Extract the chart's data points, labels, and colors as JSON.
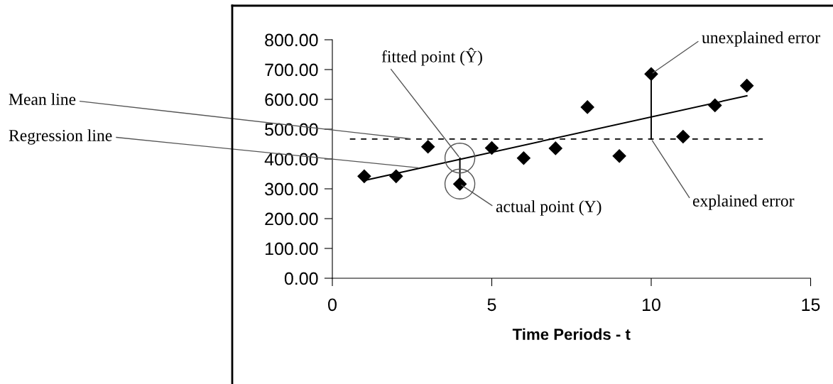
{
  "chart_data": {
    "type": "scatter",
    "xlabel": "Time Periods - t",
    "xlim": [
      0,
      15
    ],
    "xticks": [
      0,
      5,
      10,
      15
    ],
    "ylim": [
      0,
      800
    ],
    "yticks": [
      {
        "value": 0,
        "label": "0.00"
      },
      {
        "value": 100,
        "label": "100.00"
      },
      {
        "value": 200,
        "label": "200.00"
      },
      {
        "value": 300,
        "label": "300.00"
      },
      {
        "value": 400,
        "label": "400.00"
      },
      {
        "value": 500,
        "label": "500.00"
      },
      {
        "value": 600,
        "label": "600.00"
      },
      {
        "value": 700,
        "label": "700.00"
      },
      {
        "value": 800,
        "label": "800.00"
      }
    ],
    "grid": false,
    "marker": "diamond",
    "series": [
      {
        "color": "#000000",
        "x": [
          1,
          2,
          3,
          4,
          5,
          6,
          7,
          8,
          9,
          10,
          11,
          12,
          13
        ],
        "values": [
          342,
          342,
          441,
          316,
          437,
          403,
          436,
          574,
          410,
          685,
          475,
          580,
          646
        ]
      },
      {
        "type": "line",
        "line_style": "dashed",
        "marker": "none",
        "color": "#000000",
        "x": [
          0.55,
          13.5
        ],
        "values": [
          467,
          467
        ]
      },
      {
        "type": "line",
        "line_style": "solid",
        "marker": "none",
        "color": "#000000",
        "x": [
          1,
          13
        ],
        "values": [
          328,
          612
        ]
      }
    ],
    "annotations": [
      {
        "text": "Mean line",
        "x": 2.5,
        "y": 467
      },
      {
        "text": "Regression line",
        "x": 2.76,
        "y": 370
      },
      {
        "text": "fitted point (Ŷ)",
        "x": 4,
        "y": 403
      },
      {
        "text": "actual point (Y)",
        "x": 4,
        "y": 316
      },
      {
        "text": "unexplained error",
        "x": 10,
        "y": 685
      },
      {
        "text": "explained error",
        "x": 10,
        "y": 467
      }
    ]
  }
}
